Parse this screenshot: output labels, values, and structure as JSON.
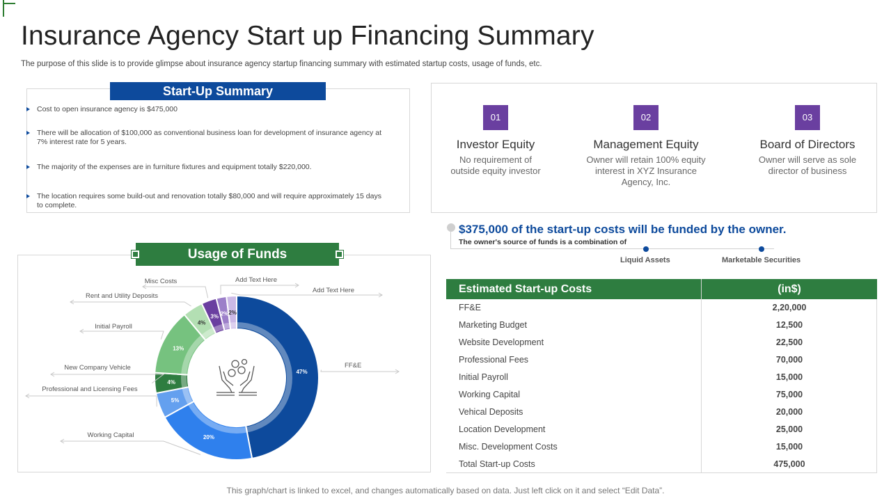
{
  "slide": {
    "title": "Insurance Agency Start up Financing Summary",
    "subtitle": "The purpose of this slide is to provide glimpse about insurance agency startup financing summary with estimated startup costs, usage of funds, etc.",
    "footer": "This graph/chart is linked to excel, and changes automatically based on data. Just left click on it and select “Edit Data”."
  },
  "summary": {
    "heading": "Start-Up Summary",
    "bullets": [
      "Cost to open insurance agency is $475,000",
      "There will be allocation of $100,000 as conventional business loan for development of insurance agency at 7% interest rate for 5 years.",
      "The majority of the expenses are in furniture fixtures and equipment totally $220,000.",
      "The location requires some build-out and renovation totally $80,000 and will require approximately 15 days to complete."
    ]
  },
  "equity": [
    {
      "num": "01",
      "title": "Investor Equity",
      "desc": "No requirement of outside equity investor"
    },
    {
      "num": "02",
      "title": "Management Equity",
      "desc": "Owner will retain 100% equity interest in XYZ Insurance Agency, Inc."
    },
    {
      "num": "03",
      "title": "Board of Directors",
      "desc": "Owner will serve as sole director of business"
    }
  ],
  "funding": {
    "headline": "$375,000 of the start-up costs will be funded by the owner.",
    "sub": "The owner's source of funds is a combination of",
    "sources": [
      "Liquid Assets",
      "Marketable Securities"
    ]
  },
  "usage": {
    "heading": "Usage of Funds"
  },
  "chart_data": {
    "type": "pie",
    "title": "Usage of Funds",
    "donut": true,
    "slices": [
      {
        "label": "FF&E",
        "value": 47,
        "text": "47%",
        "color": "#0d4a9c"
      },
      {
        "label": "Working Capital",
        "value": 20,
        "text": "20%",
        "color": "#2f80ed"
      },
      {
        "label": "Professional and Licensing Fees",
        "value": 5,
        "text": "5%",
        "color": "#64a0ef"
      },
      {
        "label": "New Company Vehicle",
        "value": 4,
        "text": "4%",
        "color": "#2e7d40"
      },
      {
        "label": "Initial Payroll",
        "value": 13,
        "text": "13%",
        "color": "#76c27f"
      },
      {
        "label": "Rent and Utility Deposits",
        "value": 4,
        "text": "4%",
        "color": "#b3dfb3"
      },
      {
        "label": "Misc Costs",
        "value": 3,
        "text": "3%",
        "color": "#6a3fa0"
      },
      {
        "label": "Add Text Here",
        "value": 2,
        "text": "2%",
        "color": "#9c7fc9"
      },
      {
        "label": "Add Text Here",
        "value": 2,
        "text": "2%",
        "color": "#cbb9e6"
      }
    ],
    "legend": "callout labels"
  },
  "table": {
    "headers": [
      "Estimated Start-up Costs",
      "(in$)"
    ],
    "rows": [
      [
        "FF&E",
        "2,20,000"
      ],
      [
        "Marketing Budget",
        "12,500"
      ],
      [
        "Website Development",
        "22,500"
      ],
      [
        "Professional Fees",
        "70,000"
      ],
      [
        "Initial Payroll",
        "15,000"
      ],
      [
        "Working Capital",
        "75,000"
      ],
      [
        "Vehical Deposits",
        "20,000"
      ],
      [
        "Location Development",
        "25,000"
      ],
      [
        "Misc. Development Costs",
        "15,000"
      ],
      [
        "Total Start-up Costs",
        "475,000"
      ]
    ]
  },
  "colors": {
    "brand_blue": "#0d4a9c",
    "brand_green": "#2e7d40",
    "accent_purple": "#6a3fa0"
  }
}
